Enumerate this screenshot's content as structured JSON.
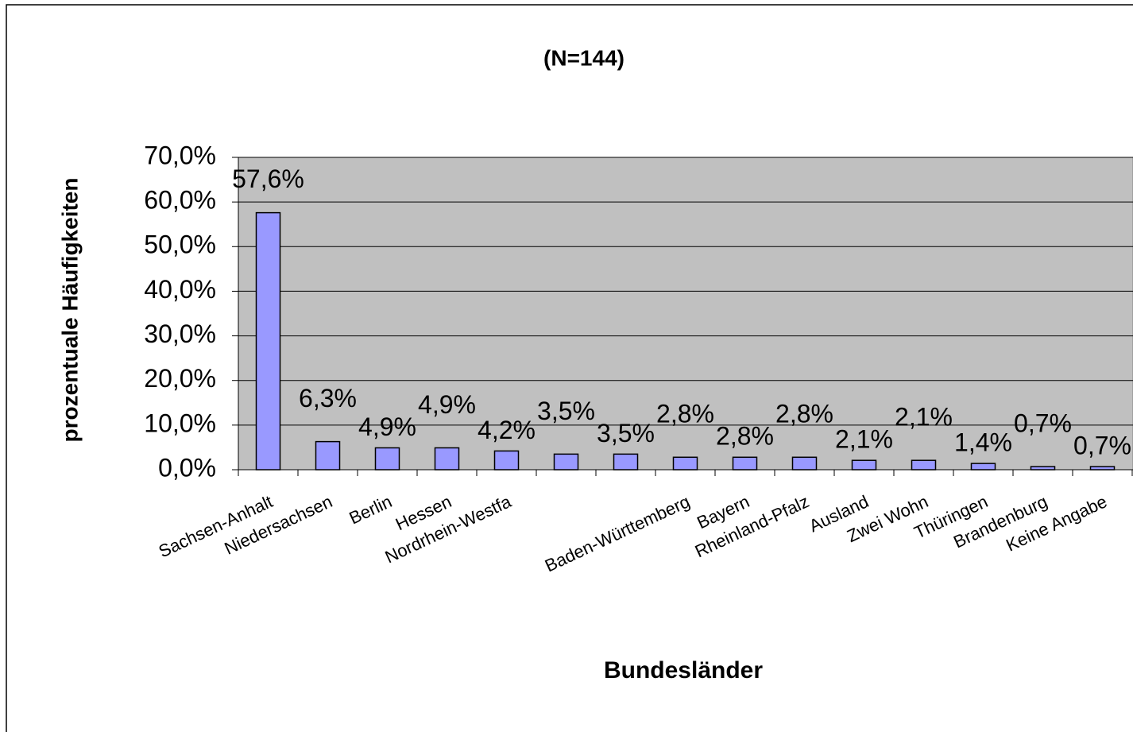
{
  "chart_data": {
    "type": "bar",
    "title": "(N=144)",
    "y_label": "prozentuale Häufigkeiten",
    "x_label": "Bundesländer",
    "categories": [
      "Sachsen-Anhalt",
      "Niedersachsen",
      "Berlin",
      "Hessen",
      "Nordrhein-Westfa",
      null,
      null,
      "Baden-Württemberg",
      "Bayern",
      "Rheinland-Pfalz",
      "Ausland",
      "Zwei Wohn",
      "Thüringen",
      "Brandenburg",
      "Keine Angabe"
    ],
    "values": [
      57.6,
      6.3,
      4.9,
      4.9,
      4.2,
      3.5,
      3.5,
      2.8,
      2.8,
      2.8,
      2.1,
      2.1,
      1.4,
      0.7,
      0.7
    ],
    "value_labels": [
      "57,6%",
      "6,3%",
      "4,9%",
      "4,9%",
      "4,2%",
      "3,5%",
      "3,5%",
      "2,8%",
      "2,8%",
      "2,8%",
      "2,1%",
      "2,1%",
      "1,4%",
      "0,7%",
      "0,7%"
    ],
    "color": "#9999ff",
    "ylim": [
      0,
      70
    ],
    "yticks": [
      {
        "value": 0,
        "label": "0,0%"
      },
      {
        "value": 10,
        "label": "10,0%"
      },
      {
        "value": 20,
        "label": "20,0%"
      },
      {
        "value": 30,
        "label": "30,0%"
      },
      {
        "value": 40,
        "label": "40,0%"
      },
      {
        "value": 50,
        "label": "50,0%"
      },
      {
        "value": 60,
        "label": "60,0%"
      },
      {
        "value": 70,
        "label": "70,0%"
      }
    ],
    "grid": true
  }
}
